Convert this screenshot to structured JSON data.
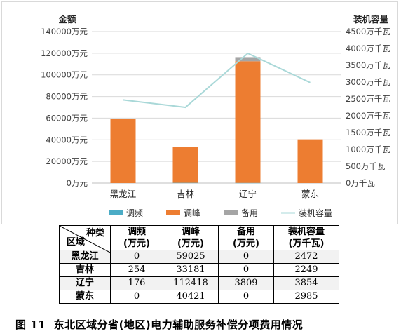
{
  "chart_data": {
    "type": "bar",
    "title": "",
    "left_axis_title": "金额",
    "right_axis_title": "装机容量",
    "categories": [
      "黑龙江",
      "吉林",
      "辽宁",
      "蒙东"
    ],
    "series": [
      {
        "name": "调频",
        "kind": "bar",
        "axis": "left",
        "color": "#4bacc6",
        "values": [
          0,
          254,
          176,
          0
        ]
      },
      {
        "name": "调峰",
        "kind": "bar",
        "axis": "left",
        "color": "#ed7d31",
        "values": [
          59025,
          33181,
          112418,
          40421
        ]
      },
      {
        "name": "备用",
        "kind": "bar",
        "axis": "left",
        "color": "#a5a5a5",
        "values": [
          0,
          0,
          3809,
          0
        ]
      },
      {
        "name": "装机容量",
        "kind": "line",
        "axis": "right",
        "color": "#a9d8d8",
        "values": [
          2472,
          2249,
          3854,
          2985
        ]
      }
    ],
    "left_ylim": [
      0,
      140000
    ],
    "left_ticks": [
      "0万元",
      "20000万元",
      "40000万元",
      "60000万元",
      "80000万元",
      "100000万元",
      "120000万元",
      "140000万元"
    ],
    "right_ylim": [
      0,
      4500
    ],
    "right_ticks": [
      "0万千瓦",
      "500万千瓦",
      "1000万千瓦",
      "1500万千瓦",
      "2000万千瓦",
      "2500万千瓦",
      "3000万千瓦",
      "3500万千瓦",
      "4000万千瓦",
      "4500万千瓦"
    ],
    "grid": true,
    "legend_position": "bottom"
  },
  "table": {
    "corner_top": "种类",
    "corner_bottom": "区域",
    "headers": [
      {
        "line1": "调频",
        "line2": "(万元)"
      },
      {
        "line1": "调峰",
        "line2": "(万元)"
      },
      {
        "line1": "备用",
        "line2": "(万元)"
      },
      {
        "line1": "装机容量",
        "line2": "(万千瓦)"
      }
    ],
    "rows": [
      {
        "region": "黑龙江",
        "values": [
          "0",
          "59025",
          "0",
          "2472"
        ]
      },
      {
        "region": "吉林",
        "values": [
          "254",
          "33181",
          "0",
          "2249"
        ]
      },
      {
        "region": "辽宁",
        "values": [
          "176",
          "112418",
          "3809",
          "3854"
        ]
      },
      {
        "region": "蒙东",
        "values": [
          "0",
          "40421",
          "0",
          "2985"
        ]
      }
    ]
  },
  "caption": {
    "label": "图 11",
    "text": "东北区域分省(地区)电力辅助服务补偿分项费用情况"
  }
}
